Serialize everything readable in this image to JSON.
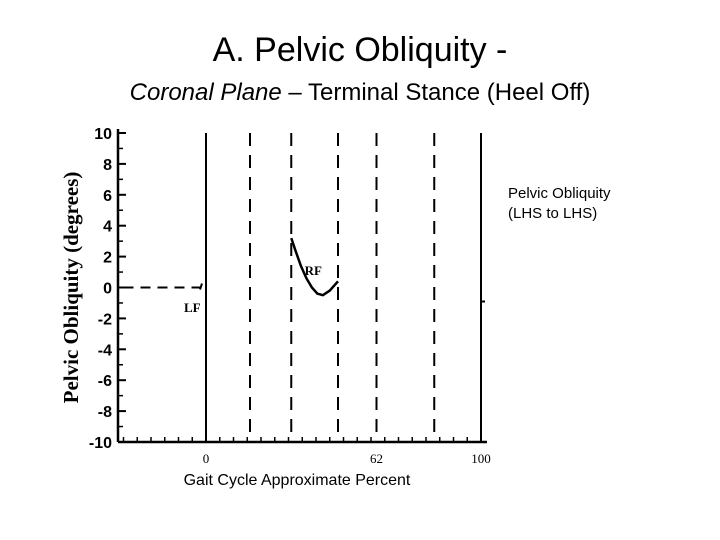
{
  "slide": {
    "title": "A. Pelvic Obliquity -",
    "subtitle_italic": "Coronal Plane",
    "subtitle_rest": " – Terminal Stance (Heel Off)"
  },
  "chart_data": {
    "type": "line",
    "xlabel": "Gait Cycle Approximate Percent",
    "ylabel": "Pelvic Obliquity (degrees)",
    "xlim": [
      0,
      100
    ],
    "ylim": [
      -10,
      10
    ],
    "x_ticks": [
      0,
      62,
      100
    ],
    "y_ticks": [
      10,
      8,
      6,
      4,
      2,
      0,
      -2,
      -4,
      -6,
      -8,
      -10
    ],
    "series": [
      {
        "points": [
          [
            31,
            3.2
          ],
          [
            32.5,
            2.4
          ],
          [
            34.5,
            1.4
          ],
          [
            36.5,
            0.6
          ],
          [
            38.5,
            0.0
          ],
          [
            40.5,
            -0.4
          ],
          [
            42.5,
            -0.5
          ],
          [
            45,
            -0.2
          ],
          [
            48,
            0.4
          ]
        ]
      }
    ],
    "event_lines_solid": [
      0,
      100
    ],
    "event_lines_dashed": [
      16,
      31,
      48,
      62,
      83
    ],
    "zero_reference_segment": [
      -30,
      0
    ],
    "annotations": [
      {
        "text": "LF",
        "x": -5,
        "y": -1.2
      },
      {
        "text": "RF",
        "x": 39,
        "y": 1.2
      }
    ],
    "legend_note": [
      "Pelvic Obliquity",
      "(LHS to LHS)"
    ],
    "line_color": "#000000",
    "grid": false
  }
}
